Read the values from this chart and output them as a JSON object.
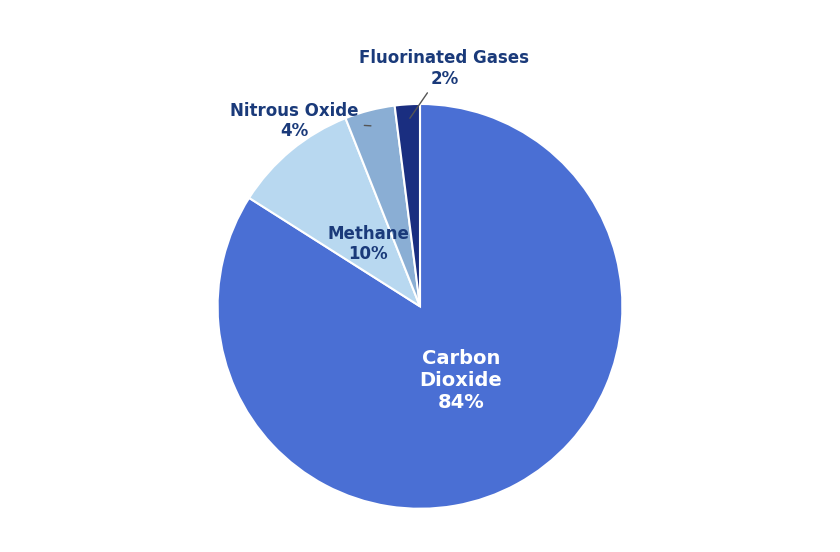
{
  "labels": [
    "Carbon Dioxide",
    "Methane",
    "Nitrous Oxide",
    "Fluorinated Gases"
  ],
  "values": [
    84,
    10,
    4,
    2
  ],
  "colors": [
    "#4a6fd4",
    "#b8d8f0",
    "#8aaed4",
    "#1a2e80"
  ],
  "startangle": 90,
  "figsize": [
    8.4,
    5.52
  ],
  "dpi": 100,
  "co2_label": "Carbon\nDioxide\n84%",
  "co2_color": "white",
  "co2_fontsize": 14,
  "methane_label": "Methane\n10%",
  "methane_color": "#1a3a7a",
  "methane_fontsize": 12,
  "nitrous_label": "Nitrous Oxide\n4%",
  "nitrous_color": "#1a3a7a",
  "nitrous_fontsize": 12,
  "fluor_label": "Fluorinated Gases\n2%",
  "fluor_color": "#1a3a7a",
  "fluor_fontsize": 12,
  "edgecolor": "white",
  "linewidth": 1.5
}
